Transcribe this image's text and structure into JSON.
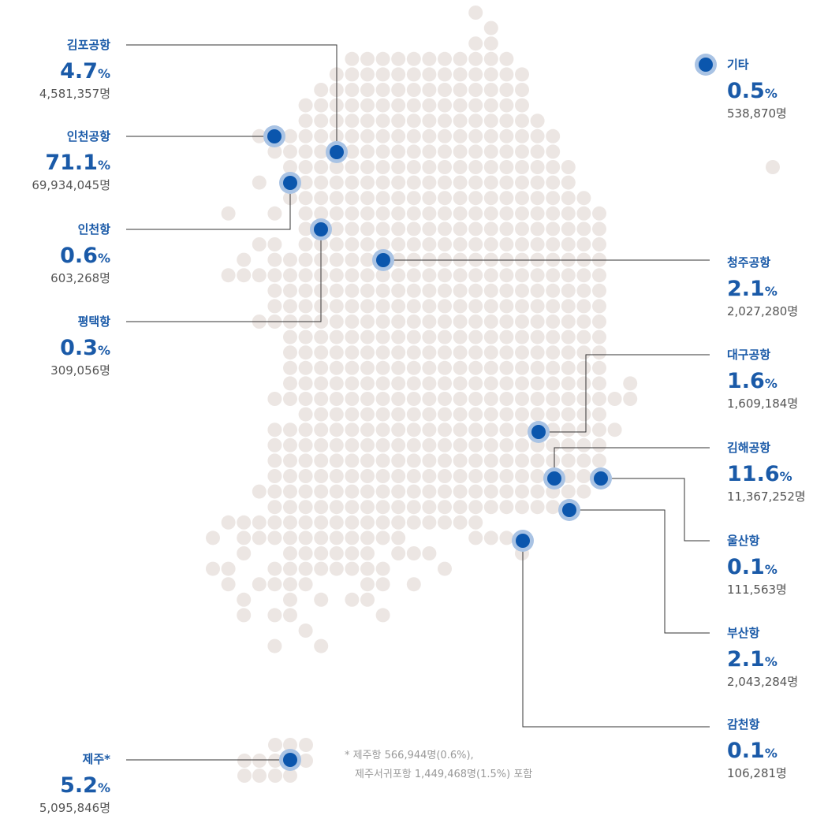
{
  "percent_unit": "%",
  "locations": [
    {
      "name": "김포공항",
      "percent": "4.7",
      "count": "4,581,357명"
    },
    {
      "name": "인천공항",
      "percent": "71.1",
      "count": "69,934,045명"
    },
    {
      "name": "인천항",
      "percent": "0.6",
      "count": "603,268명"
    },
    {
      "name": "평택항",
      "percent": "0.3",
      "count": "309,056명"
    },
    {
      "name": "제주*",
      "percent": "5.2",
      "count": "5,095,846명"
    },
    {
      "name": "기타",
      "percent": "0.5",
      "count": "538,870명"
    },
    {
      "name": "청주공항",
      "percent": "2.1",
      "count": "2,027,280명"
    },
    {
      "name": "대구공항",
      "percent": "1.6",
      "count": "1,609,184명"
    },
    {
      "name": "김해공항",
      "percent": "11.6",
      "count": "11,367,252명"
    },
    {
      "name": "울산항",
      "percent": "0.1",
      "count": "111,563명"
    },
    {
      "name": "부산항",
      "percent": "2.1",
      "count": "2,043,284명"
    },
    {
      "name": "감천항",
      "percent": "0.1",
      "count": "106,281명"
    }
  ],
  "footnote": [
    "* 제주항 566,944명(0.6%),",
    "제주서귀포항 1,449,468명(1.5%) 포함"
  ]
}
